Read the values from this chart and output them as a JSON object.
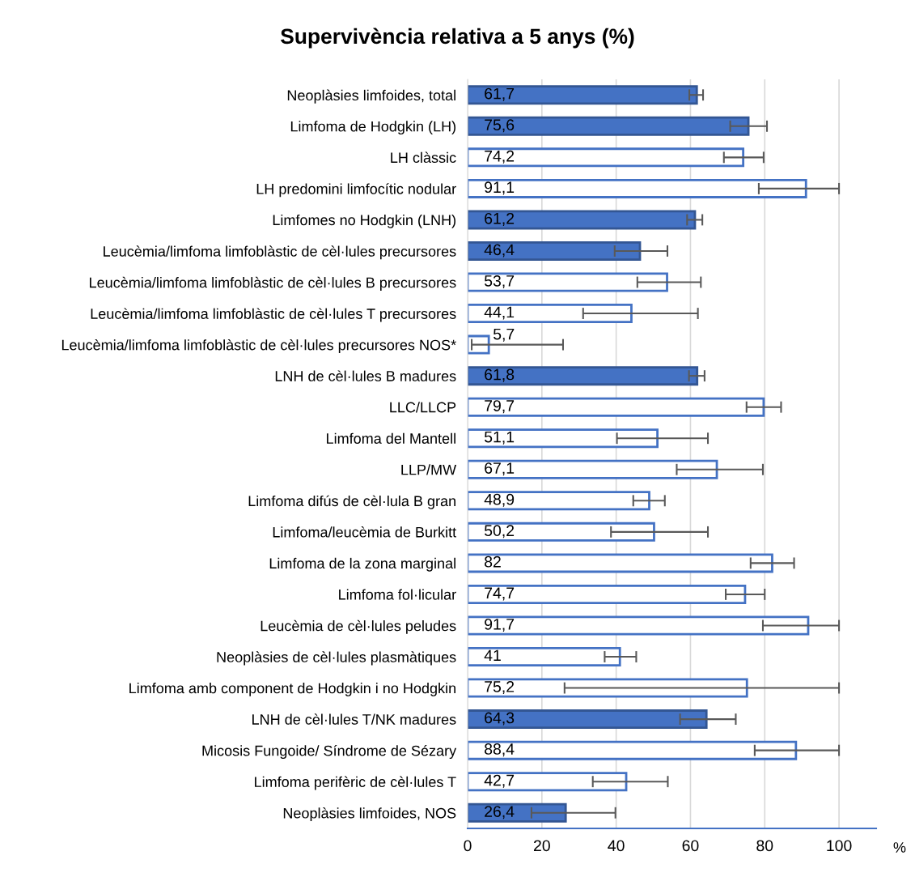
{
  "chart_data": {
    "type": "bar",
    "orientation": "horizontal",
    "title": "Supervivència relativa a 5 anys (%)",
    "xlabel": "%",
    "categories": [
      "Neoplàsies limfoides, total",
      "Limfoma de Hodgkin (LH)",
      "LH clàssic",
      "LH predomini limfocític nodular",
      "Limfomes no Hodgkin (LNH)",
      "Leucèmia/limfoma limfoblàstic de cèl·lules precursores",
      "Leucèmia/limfoma limfoblàstic de cèl·lules B precursores",
      "Leucèmia/limfoma limfoblàstic de cèl·lules T precursores",
      "Leucèmia/limfoma limfoblàstic de cèl·lules precursores NOS*",
      "LNH de cèl·lules B madures",
      "LLC/LLCP",
      "Limfoma del Mantell",
      "LLP/MW",
      "Limfoma difús de cèl·lula B gran",
      "Limfoma/leucèmia de Burkitt",
      "Limfoma de la zona marginal",
      "Limfoma fol·licular",
      "Leucèmia de cèl·lules peludes",
      "Neoplàsies de cèl·lules plasmàtiques",
      "Limfoma amb component de Hodgkin i no Hodgkin",
      "LNH de cèl·lules T/NK madures",
      "Micosis Fungoide/ Síndrome de Sézary",
      "Limfoma perifèric de cèl·lules T",
      "Neoplàsies limfoides, NOS"
    ],
    "series": [
      {
        "color": "#4472c4",
        "colors": [
          "#4472c4",
          "#4472c4",
          "#ffffff",
          "#ffffff",
          "#4472c4",
          "#4472c4",
          "#ffffff",
          "#ffffff",
          "#ffffff",
          "#4472c4",
          "#ffffff",
          "#ffffff",
          "#ffffff",
          "#ffffff",
          "#ffffff",
          "#ffffff",
          "#ffffff",
          "#ffffff",
          "#ffffff",
          "#ffffff",
          "#4472c4",
          "#ffffff",
          "#ffffff",
          "#4472c4"
        ],
        "values": [
          61.7,
          75.6,
          74.2,
          91.1,
          61.2,
          46.4,
          53.7,
          44.1,
          5.7,
          61.8,
          79.7,
          51.1,
          67.1,
          48.9,
          50.2,
          82,
          74.7,
          91.7,
          41,
          75.2,
          64.3,
          88.4,
          42.7,
          26.4
        ],
        "value_labels": [
          "61,7",
          "75,6",
          "74,2",
          "91,1",
          "61,2",
          "46,4",
          "53,7",
          "44,1",
          "5,7",
          "61,8",
          "79,7",
          "51,1",
          "67,1",
          "48,9",
          "50,2",
          "82",
          "74,7",
          "91,7",
          "41",
          "75,2",
          "64,3",
          "88,4",
          "42,7",
          "26,4"
        ],
        "errors": [
          [
            59.7,
            63.4
          ],
          [
            70.7,
            80.6
          ],
          [
            69.0,
            79.7
          ],
          [
            78.4,
            100
          ],
          [
            59.1,
            63.2
          ],
          [
            39.6,
            53.8
          ],
          [
            45.7,
            62.8
          ],
          [
            31.1,
            62.0
          ],
          [
            1.1,
            25.7
          ],
          [
            59.6,
            63.8
          ],
          [
            75.1,
            84.4
          ],
          [
            40.2,
            64.7
          ],
          [
            56.3,
            79.5
          ],
          [
            44.6,
            53.1
          ],
          [
            38.6,
            64.7
          ],
          [
            76.2,
            87.9
          ],
          [
            69.5,
            80.0
          ],
          [
            79.5,
            100
          ],
          [
            36.9,
            45.4
          ],
          [
            26.1,
            100
          ],
          [
            57.2,
            72.2
          ],
          [
            77.3,
            100
          ],
          [
            33.7,
            53.9
          ],
          [
            17.2,
            39.8
          ]
        ]
      }
    ],
    "xlim": [
      0,
      110
    ],
    "xticks": [
      0,
      20,
      40,
      60,
      80,
      100
    ],
    "grid": "x",
    "legend": false
  }
}
